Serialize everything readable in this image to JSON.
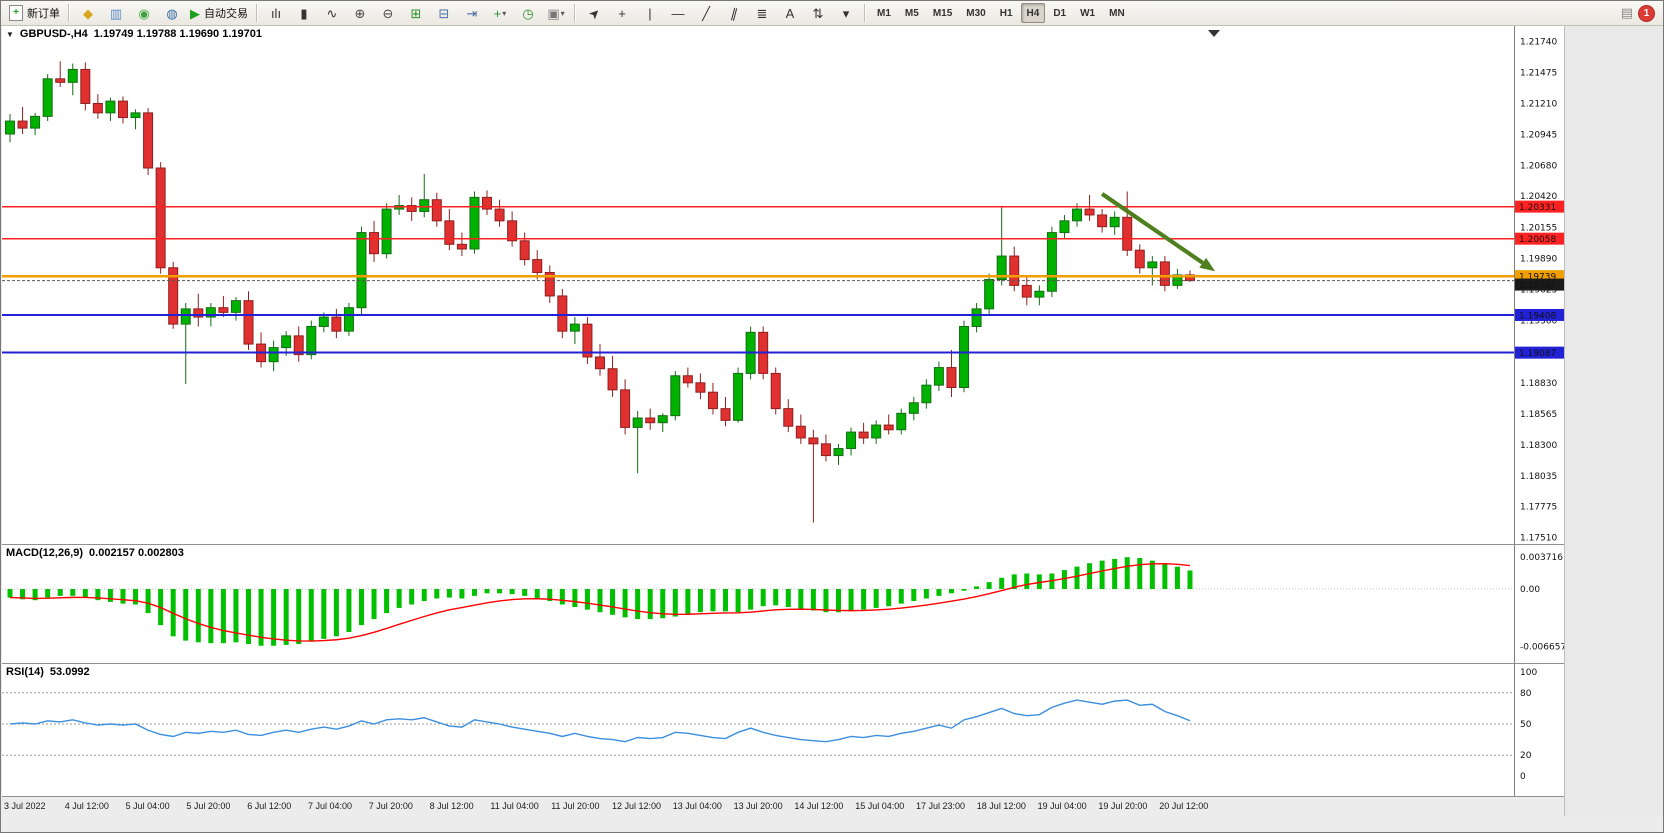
{
  "icons": {
    "chart_menu": "▼",
    "play": "▶",
    "plus": "+",
    "dropdown": "▾",
    "alerts": "▤"
  },
  "toolbar": {
    "new_order_label": "新订单",
    "autotrading_label": "自动交易",
    "system_icons": [
      {
        "name": "metaeditor-icon",
        "glyph": "◆",
        "color": "#d9a51b"
      },
      {
        "name": "strategy-tester-icon",
        "glyph": "▥",
        "color": "#5b8bc9"
      },
      {
        "name": "market-watch-icon",
        "glyph": "◉",
        "color": "#3da53d"
      },
      {
        "name": "terminal-icon",
        "glyph": "◍",
        "color": "#3a6ea5"
      }
    ],
    "chart_icons": [
      {
        "name": "bar-chart-icon",
        "glyph": "ılı",
        "color": "#333333"
      },
      {
        "name": "candlestick-chart-icon",
        "glyph": "▮",
        "color": "#333333"
      },
      {
        "name": "line-chart-icon",
        "glyph": "∿",
        "color": "#333333"
      },
      {
        "name": "zoom-in-icon",
        "glyph": "⊕",
        "color": "#4a4a4a"
      },
      {
        "name": "zoom-out-icon",
        "glyph": "⊖",
        "color": "#4a4a4a"
      },
      {
        "name": "tile-windows-icon",
        "glyph": "⊞",
        "color": "#2f8f2f"
      },
      {
        "name": "cascade-windows-icon",
        "glyph": "⊟",
        "color": "#4a6fa5"
      },
      {
        "name": "chart-shift-icon",
        "glyph": "⇥",
        "color": "#4a6fa5"
      },
      {
        "name": "new-chart-icon",
        "glyph": "+",
        "color": "#2f8f2f",
        "dropdown": true
      },
      {
        "name": "period-clock-icon",
        "glyph": "◷",
        "color": "#2f8f2f"
      },
      {
        "name": "template-icon",
        "glyph": "▣",
        "color": "#777777",
        "dropdown": true
      }
    ],
    "draw_icons": [
      {
        "name": "cursor-icon",
        "glyph": "➤",
        "color": "#333333",
        "rotate": -45
      },
      {
        "name": "crosshair-icon",
        "glyph": "+",
        "color": "#333333"
      },
      {
        "name": "vertical-line-icon",
        "glyph": "|",
        "color": "#333333"
      },
      {
        "name": "horizontal-line-icon",
        "glyph": "—",
        "color": "#333333"
      },
      {
        "name": "trendline-icon",
        "glyph": "╱",
        "color": "#333333"
      },
      {
        "name": "channel-icon",
        "glyph": "∥",
        "color": "#333333",
        "rotate": 15
      },
      {
        "name": "fibonacci-icon",
        "glyph": "≣",
        "color": "#333333"
      },
      {
        "name": "text-label-icon",
        "glyph": "A",
        "color": "#333333"
      },
      {
        "name": "arrow-objects-icon",
        "glyph": "⇅",
        "color": "#333333"
      },
      {
        "name": "objects-dropdown-icon",
        "glyph": "▾",
        "color": "#333333"
      }
    ],
    "timeframes": [
      "M1",
      "M5",
      "M15",
      "M30",
      "H1",
      "H4",
      "D1",
      "W1",
      "MN"
    ],
    "active_timeframe": "H4",
    "notification_count": "1"
  },
  "chart_data": {
    "type": "candlestick",
    "title": "GBPUSD-,H4",
    "ohlc_display": "1.19749 1.19788 1.19690 1.19701",
    "price_axis_labels": [
      "1.21740",
      "1.21475",
      "1.21210",
      "1.20945",
      "1.20680",
      "1.20420",
      "1.20155",
      "1.19890",
      "1.19625",
      "1.19360",
      "1.19095",
      "1.18830",
      "1.18565",
      "1.18300",
      "1.18035",
      "1.17775",
      "1.17510"
    ],
    "up_color": "#00b200",
    "down_color": "#e03030",
    "candles": [
      [
        1.2095,
        1.2112,
        1.2088,
        1.2106
      ],
      [
        1.2106,
        1.2118,
        1.2095,
        1.21
      ],
      [
        1.21,
        1.2113,
        1.2094,
        1.211
      ],
      [
        1.211,
        1.2146,
        1.2106,
        1.2142
      ],
      [
        1.2142,
        1.2157,
        1.2135,
        1.2139
      ],
      [
        1.2139,
        1.2155,
        1.2128,
        1.215
      ],
      [
        1.215,
        1.2156,
        1.2115,
        1.2121
      ],
      [
        1.2121,
        1.2129,
        1.2108,
        1.2113
      ],
      [
        1.2113,
        1.2126,
        1.2106,
        1.2123
      ],
      [
        1.2123,
        1.2127,
        1.2104,
        1.2109
      ],
      [
        1.2109,
        1.2116,
        1.2099,
        1.2113
      ],
      [
        1.2113,
        1.2117,
        1.206,
        1.2066
      ],
      [
        1.2066,
        1.2071,
        1.1976,
        1.1981
      ],
      [
        1.1981,
        1.1986,
        1.1929,
        1.1933
      ],
      [
        1.1933,
        1.1951,
        1.1882,
        1.1946
      ],
      [
        1.1946,
        1.1959,
        1.1931,
        1.1939
      ],
      [
        1.1939,
        1.1951,
        1.1931,
        1.1947
      ],
      [
        1.1947,
        1.1957,
        1.1939,
        1.1943
      ],
      [
        1.1943,
        1.1956,
        1.1936,
        1.1953
      ],
      [
        1.1953,
        1.1961,
        1.1911,
        1.1916
      ],
      [
        1.1916,
        1.1926,
        1.1896,
        1.1901
      ],
      [
        1.1901,
        1.1919,
        1.1893,
        1.1913
      ],
      [
        1.1913,
        1.1927,
        1.1906,
        1.1923
      ],
      [
        1.1923,
        1.1931,
        1.1901,
        1.1907
      ],
      [
        1.1907,
        1.1936,
        1.1903,
        1.1931
      ],
      [
        1.1931,
        1.1943,
        1.1926,
        1.1939
      ],
      [
        1.1939,
        1.1946,
        1.1921,
        1.1927
      ],
      [
        1.1927,
        1.1951,
        1.1923,
        1.1947
      ],
      [
        1.1947,
        1.2016,
        1.1941,
        1.2011
      ],
      [
        1.2011,
        1.2021,
        1.1986,
        1.1993
      ],
      [
        1.1993,
        1.2036,
        1.1989,
        1.2031
      ],
      [
        1.2031,
        1.2043,
        1.2026,
        1.2034
      ],
      [
        1.2034,
        1.2041,
        1.2021,
        1.2029
      ],
      [
        1.2029,
        1.2061,
        1.2024,
        1.2039
      ],
      [
        1.2039,
        1.2045,
        1.2016,
        1.2021
      ],
      [
        1.2021,
        1.2031,
        1.1996,
        1.2001
      ],
      [
        1.2001,
        1.2011,
        1.1991,
        1.1997
      ],
      [
        1.1997,
        1.2046,
        1.1993,
        1.2041
      ],
      [
        1.2041,
        1.2047,
        1.2026,
        1.2031
      ],
      [
        1.2031,
        1.2039,
        1.2016,
        1.2021
      ],
      [
        1.2021,
        1.2029,
        1.1999,
        1.2004
      ],
      [
        1.2004,
        1.2011,
        1.1983,
        1.1988
      ],
      [
        1.1988,
        1.1996,
        1.1971,
        1.1977
      ],
      [
        1.1977,
        1.1983,
        1.1951,
        1.1957
      ],
      [
        1.1957,
        1.1963,
        1.1921,
        1.1927
      ],
      [
        1.1927,
        1.1939,
        1.1916,
        1.1933
      ],
      [
        1.1933,
        1.1939,
        1.1899,
        1.1905
      ],
      [
        1.1905,
        1.1916,
        1.1889,
        1.1895
      ],
      [
        1.1895,
        1.1906,
        1.1871,
        1.1877
      ],
      [
        1.1877,
        1.1886,
        1.1839,
        1.1845
      ],
      [
        1.1845,
        1.1859,
        1.1806,
        1.1853
      ],
      [
        1.1853,
        1.1861,
        1.1843,
        1.1849
      ],
      [
        1.1849,
        1.1857,
        1.1841,
        1.1855
      ],
      [
        1.1855,
        1.1893,
        1.1851,
        1.1889
      ],
      [
        1.1889,
        1.1896,
        1.1879,
        1.1883
      ],
      [
        1.1883,
        1.1891,
        1.1869,
        1.1875
      ],
      [
        1.1875,
        1.1883,
        1.1856,
        1.1861
      ],
      [
        1.1861,
        1.1871,
        1.1846,
        1.1851
      ],
      [
        1.1851,
        1.1896,
        1.1849,
        1.1891
      ],
      [
        1.1891,
        1.1931,
        1.1886,
        1.1926
      ],
      [
        1.1926,
        1.1931,
        1.1886,
        1.1891
      ],
      [
        1.1891,
        1.1896,
        1.1856,
        1.1861
      ],
      [
        1.1861,
        1.1869,
        1.1841,
        1.1846
      ],
      [
        1.1846,
        1.1856,
        1.1831,
        1.1836
      ],
      [
        1.1836,
        1.1843,
        1.1764,
        1.1831
      ],
      [
        1.1831,
        1.1839,
        1.1816,
        1.1821
      ],
      [
        1.1821,
        1.1831,
        1.1813,
        1.1827
      ],
      [
        1.1827,
        1.1845,
        1.1821,
        1.1841
      ],
      [
        1.1841,
        1.1849,
        1.1831,
        1.1836
      ],
      [
        1.1836,
        1.1851,
        1.1831,
        1.1847
      ],
      [
        1.1847,
        1.1856,
        1.1839,
        1.1843
      ],
      [
        1.1843,
        1.1861,
        1.1839,
        1.1857
      ],
      [
        1.1857,
        1.1871,
        1.1851,
        1.1866
      ],
      [
        1.1866,
        1.1886,
        1.1861,
        1.1881
      ],
      [
        1.1881,
        1.1901,
        1.1876,
        1.1896
      ],
      [
        1.1896,
        1.1911,
        1.1871,
        1.1879
      ],
      [
        1.1879,
        1.1936,
        1.1875,
        1.1931
      ],
      [
        1.1931,
        1.1951,
        1.1926,
        1.1946
      ],
      [
        1.1946,
        1.1976,
        1.1941,
        1.1971
      ],
      [
        1.1971,
        1.2033,
        1.1966,
        1.1991
      ],
      [
        1.1991,
        1.1999,
        1.1961,
        1.1966
      ],
      [
        1.1966,
        1.1973,
        1.1949,
        1.1956
      ],
      [
        1.1956,
        1.1966,
        1.1949,
        1.1961
      ],
      [
        1.1961,
        1.2016,
        1.1956,
        1.2011
      ],
      [
        1.2011,
        1.2026,
        1.2006,
        1.2021
      ],
      [
        1.2021,
        1.2036,
        1.2016,
        1.2031
      ],
      [
        1.2031,
        1.2043,
        1.2021,
        1.2026
      ],
      [
        1.2026,
        1.2031,
        1.2011,
        1.2016
      ],
      [
        1.2016,
        1.2029,
        1.2009,
        1.2024
      ],
      [
        1.2024,
        1.2046,
        1.1991,
        1.1996
      ],
      [
        1.1996,
        1.2001,
        1.1976,
        1.1981
      ],
      [
        1.1981,
        1.1991,
        1.1966,
        1.1986
      ],
      [
        1.1986,
        1.1991,
        1.1961,
        1.1966
      ],
      [
        1.1966,
        1.198,
        1.1963,
        1.19749
      ],
      [
        1.19749,
        1.19788,
        1.1969,
        1.19701
      ]
    ],
    "hlines": [
      {
        "price": 1.20331,
        "label": "1.20331",
        "color": "#ff2222",
        "width": 1.4
      },
      {
        "price": 1.20058,
        "label": "1.20058",
        "color": "#ff2222",
        "width": 1.4
      },
      {
        "price": 1.19739,
        "label": "1.19739",
        "color": "#f09e00",
        "width": 2.6
      },
      {
        "price": 1.19408,
        "label": "1.19408",
        "color": "#2121d6",
        "width": 2.2
      },
      {
        "price": 1.19087,
        "label": "1.19087",
        "color": "#2121d6",
        "width": 2.2
      }
    ],
    "bid": {
      "price": 1.19701,
      "label": "1.19701",
      "color": "#1a1a1a"
    },
    "trend_arrow": {
      "from_index": 87,
      "from_price": 1.2044,
      "to_index": 96,
      "to_price": 1.1978,
      "color": "#4f801f"
    },
    "macd": {
      "label": "MACD(12,26,9)",
      "values_display": "0.002157 0.002803",
      "color_histogram": "#00c000",
      "color_signal": "#ff0000",
      "signal_period": 9,
      "axis_labels": [
        {
          "text": "0.003716",
          "value": 0.003716
        },
        {
          "text": "0.00",
          "value": 0
        },
        {
          "text": "-0.006657",
          "value": -0.006657
        }
      ],
      "histogram": [
        -0.001,
        -0.0012,
        -0.0013,
        -0.001,
        -0.0008,
        -0.0008,
        -0.001,
        -0.0013,
        -0.0015,
        -0.0017,
        -0.0018,
        -0.0028,
        -0.0042,
        -0.0055,
        -0.006,
        -0.0062,
        -0.0063,
        -0.0063,
        -0.0062,
        -0.0064,
        -0.0066,
        -0.0066,
        -0.0065,
        -0.0064,
        -0.0061,
        -0.0058,
        -0.0055,
        -0.005,
        -0.0042,
        -0.0035,
        -0.0028,
        -0.0022,
        -0.0018,
        -0.0014,
        -0.0011,
        -0.001,
        -0.0011,
        -0.0008,
        -0.0005,
        -0.0005,
        -0.0006,
        -0.0008,
        -0.0011,
        -0.0014,
        -0.0018,
        -0.0021,
        -0.0024,
        -0.0027,
        -0.003,
        -0.0033,
        -0.0035,
        -0.0035,
        -0.0034,
        -0.0032,
        -0.0029,
        -0.0027,
        -0.0026,
        -0.0026,
        -0.0027,
        -0.0024,
        -0.002,
        -0.0019,
        -0.0021,
        -0.0023,
        -0.0025,
        -0.0027,
        -0.0027,
        -0.0026,
        -0.0024,
        -0.0022,
        -0.002,
        -0.0017,
        -0.0014,
        -0.0011,
        -0.0008,
        -0.0005,
        -0.0002,
        0.0003,
        0.0008,
        0.0013,
        0.0017,
        0.0018,
        0.0017,
        0.0018,
        0.0022,
        0.0026,
        0.003,
        0.0033,
        0.0035,
        0.0037,
        0.0036,
        0.0033,
        0.003,
        0.0026,
        0.002157
      ]
    },
    "rsi": {
      "label": "RSI(14)",
      "value_display": "53.0992",
      "color": "#3c8fe0",
      "levels": [
        80,
        50,
        20
      ],
      "axis_labels": [
        {
          "text": "100",
          "value": 100
        },
        {
          "text": "80",
          "value": 80
        },
        {
          "text": "50",
          "value": 50
        },
        {
          "text": "20",
          "value": 20
        },
        {
          "text": "0",
          "value": 0
        }
      ],
      "values": [
        50,
        51,
        50,
        53,
        52,
        54,
        51,
        49,
        50,
        49,
        50,
        44,
        40,
        38,
        42,
        41,
        43,
        42,
        44,
        40,
        39,
        42,
        44,
        42,
        45,
        47,
        45,
        48,
        53,
        50,
        54,
        55,
        54,
        56,
        52,
        48,
        47,
        54,
        52,
        50,
        47,
        45,
        43,
        41,
        38,
        41,
        38,
        36,
        35,
        33,
        37,
        36,
        37,
        42,
        41,
        39,
        37,
        36,
        42,
        46,
        42,
        39,
        37,
        35,
        34,
        33,
        35,
        38,
        37,
        39,
        38,
        41,
        43,
        46,
        49,
        46,
        54,
        57,
        61,
        65,
        60,
        58,
        59,
        66,
        70,
        73,
        71,
        69,
        72,
        73,
        68,
        69,
        62,
        58,
        53.1
      ]
    },
    "time_labels": [
      "3 Jul 2022",
      "4 Jul 12:00",
      "5 Jul 04:00",
      "5 Jul 20:00",
      "6 Jul 12:00",
      "7 Jul 04:00",
      "7 Jul 20:00",
      "8 Jul 12:00",
      "11 Jul 04:00",
      "11 Jul 20:00",
      "12 Jul 12:00",
      "13 Jul 04:00",
      "13 Jul 20:00",
      "14 Jul 12:00",
      "15 Jul 04:00",
      "17 Jul 23:00",
      "18 Jul 12:00",
      "19 Jul 04:00",
      "19 Jul 20:00",
      "20 Jul 12:00"
    ]
  }
}
